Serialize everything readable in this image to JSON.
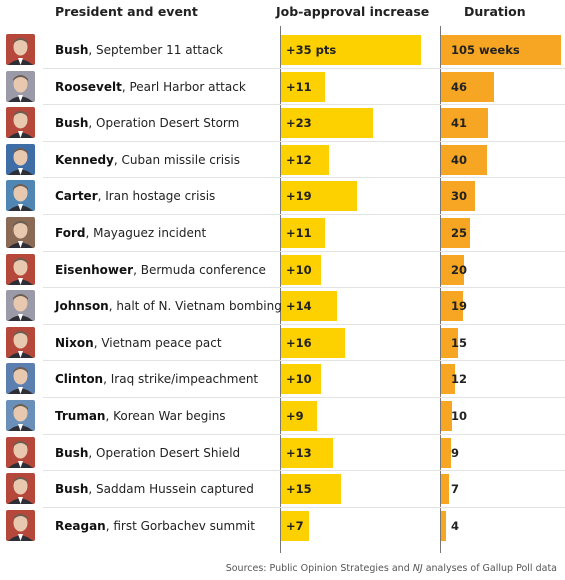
{
  "header": {
    "col1": "President and event",
    "col2": "Job-approval increase",
    "col3": "Duration"
  },
  "footer": {
    "pre": "Sources: Public Opinion Strategies and ",
    "italic": "NJ",
    "post": " analyses of Gallup Poll data"
  },
  "colors": {
    "approval_bar": "#fdd000",
    "duration_bar": "#f6a623"
  },
  "chart_data": {
    "type": "bar",
    "series": [
      {
        "name": "Job-approval increase",
        "values": [
          35,
          11,
          23,
          12,
          19,
          11,
          10,
          14,
          16,
          10,
          9,
          13,
          15,
          7
        ]
      },
      {
        "name": "Duration",
        "values": [
          105,
          46,
          41,
          40,
          30,
          25,
          20,
          19,
          15,
          12,
          10,
          9,
          7,
          4
        ]
      }
    ],
    "rows": [
      {
        "president": "Bush",
        "event": ", September 11 attack",
        "approval_label": "+35 pts",
        "duration_label": "105 weeks"
      },
      {
        "president": "Roosevelt",
        "event": ", Pearl Harbor attack",
        "approval_label": "+11",
        "duration_label": "46"
      },
      {
        "president": "Bush",
        "event": ", Operation Desert Storm",
        "approval_label": "+23",
        "duration_label": "41"
      },
      {
        "president": "Kennedy",
        "event": ", Cuban missile crisis",
        "approval_label": "+12",
        "duration_label": "40"
      },
      {
        "president": "Carter",
        "event": ", Iran hostage crisis",
        "approval_label": "+19",
        "duration_label": "30"
      },
      {
        "president": "Ford",
        "event": ", Mayaguez incident",
        "approval_label": "+11",
        "duration_label": "25"
      },
      {
        "president": "Eisenhower",
        "event": ", Bermuda conference",
        "approval_label": "+10",
        "duration_label": "20"
      },
      {
        "president": "Johnson",
        "event": ", halt of N. Vietnam bombing",
        "approval_label": "+14",
        "duration_label": "19"
      },
      {
        "president": "Nixon",
        "event": ", Vietnam peace pact",
        "approval_label": "+16",
        "duration_label": "15"
      },
      {
        "president": "Clinton",
        "event": ", Iraq strike/impeachment",
        "approval_label": "+10",
        "duration_label": "12"
      },
      {
        "president": "Truman",
        "event": ", Korean War begins",
        "approval_label": "+9",
        "duration_label": "10"
      },
      {
        "president": "Bush",
        "event": ", Operation Desert Shield",
        "approval_label": "+13",
        "duration_label": "9"
      },
      {
        "president": "Bush",
        "event": ", Saddam Hussein captured",
        "approval_label": "+15",
        "duration_label": "7"
      },
      {
        "president": "Reagan",
        "event": ", first Gorbachev summit",
        "approval_label": "+7",
        "duration_label": "4"
      }
    ]
  }
}
